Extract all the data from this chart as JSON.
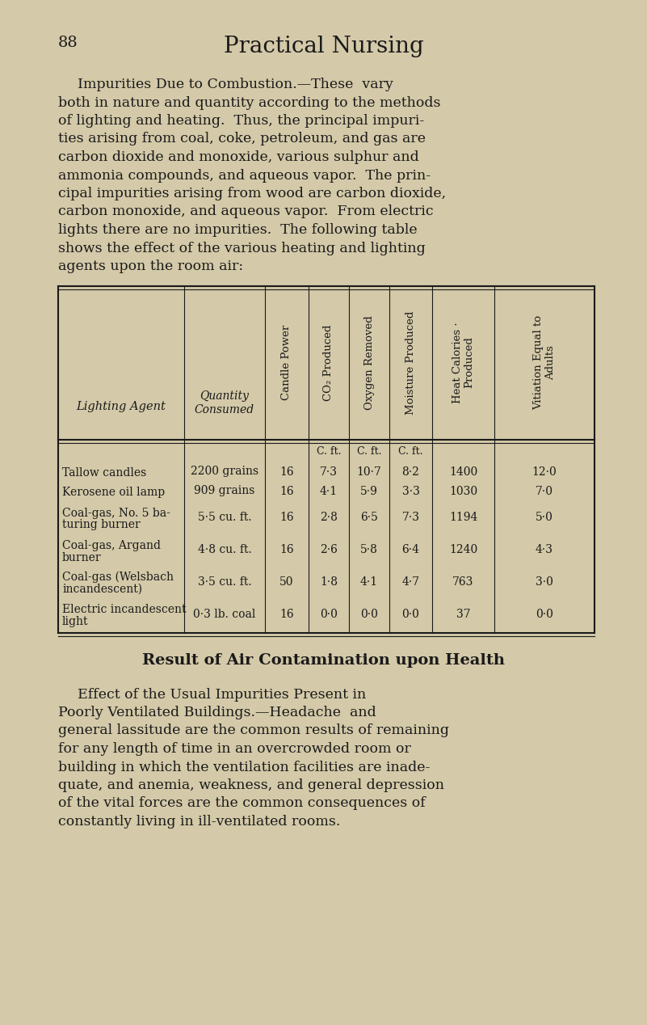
{
  "bg_color": "#d4c9a8",
  "text_color": "#1a1a1a",
  "page_number": "88",
  "page_title": "Practical Nursing",
  "para1_lines": [
    "Impurities Due to Combustion.—These  vary",
    "both in nature and quantity according to the methods",
    "of lighting and heating.  Thus, the principal impuri-",
    "ties arising from coal, coke, petroleum, and gas are",
    "carbon dioxide and monoxide, various sulphur and",
    "ammonia compounds, and aqueous vapor.  The prin-",
    "cipal impurities arising from wood are carbon dioxide,",
    "carbon monoxide, and aqueous vapor.  From electric",
    "lights there are no impurities.  The following table",
    "shows the effect of the various heating and lighting",
    "agents upon the room air:"
  ],
  "col_headers": [
    "Lighting Agent",
    "Quantity\nConsumed",
    "Candle Power",
    "CO₂ Produced",
    "Oxygen Removed",
    "Moisture Produced",
    "Heat Calories ·\nProduced",
    "Vitiation Equal to\nAdults"
  ],
  "subheader_units": [
    "",
    "",
    "",
    "C. ft.",
    "C. ft.",
    "C. ft.",
    "",
    ""
  ],
  "rows": [
    [
      "Tallow candles",
      "2200 grains",
      "16",
      "7·3",
      "10·7",
      "8·2",
      "1400",
      "12·0"
    ],
    [
      "Kerosene oil lamp",
      "909 grains",
      "16",
      "4·1",
      "5·9",
      "3·3",
      "1030",
      "7·0"
    ],
    [
      "Coal-gas, No. 5 ba-\nturing burner",
      "5·5 cu. ft.",
      "16",
      "2·8",
      "6·5",
      "7·3",
      "1194",
      "5·0"
    ],
    [
      "Coal-gas, Argand\nburner",
      "4·8 cu. ft.",
      "16",
      "2·6",
      "5·8",
      "6·4",
      "1240",
      "4·3"
    ],
    [
      "Coal-gas (Welsbach\nincandescent)",
      "3·5 cu. ft.",
      "50",
      "1·8",
      "4·1",
      "4·7",
      "763",
      "3·0"
    ],
    [
      "Electric incandescent\nlight",
      "0·3 lb. coal",
      "16",
      "0·0",
      "0·0",
      "0·0",
      "37",
      "0·0"
    ]
  ],
  "section_heading": "Result of Air Contamination upon Health",
  "para2_lines": [
    "Effect of the Usual Impurities Present in",
    "Poorly Ventilated Buildings.—Headache  and",
    "general lassitude are the common results of remaining",
    "for any length of time in an overcrowded room or",
    "building in which the ventilation facilities are inade-",
    "quate, and anemia, weakness, and general depression",
    "of the vital forces are the common consequences of",
    "constantly living in ill-ventilated rooms."
  ]
}
